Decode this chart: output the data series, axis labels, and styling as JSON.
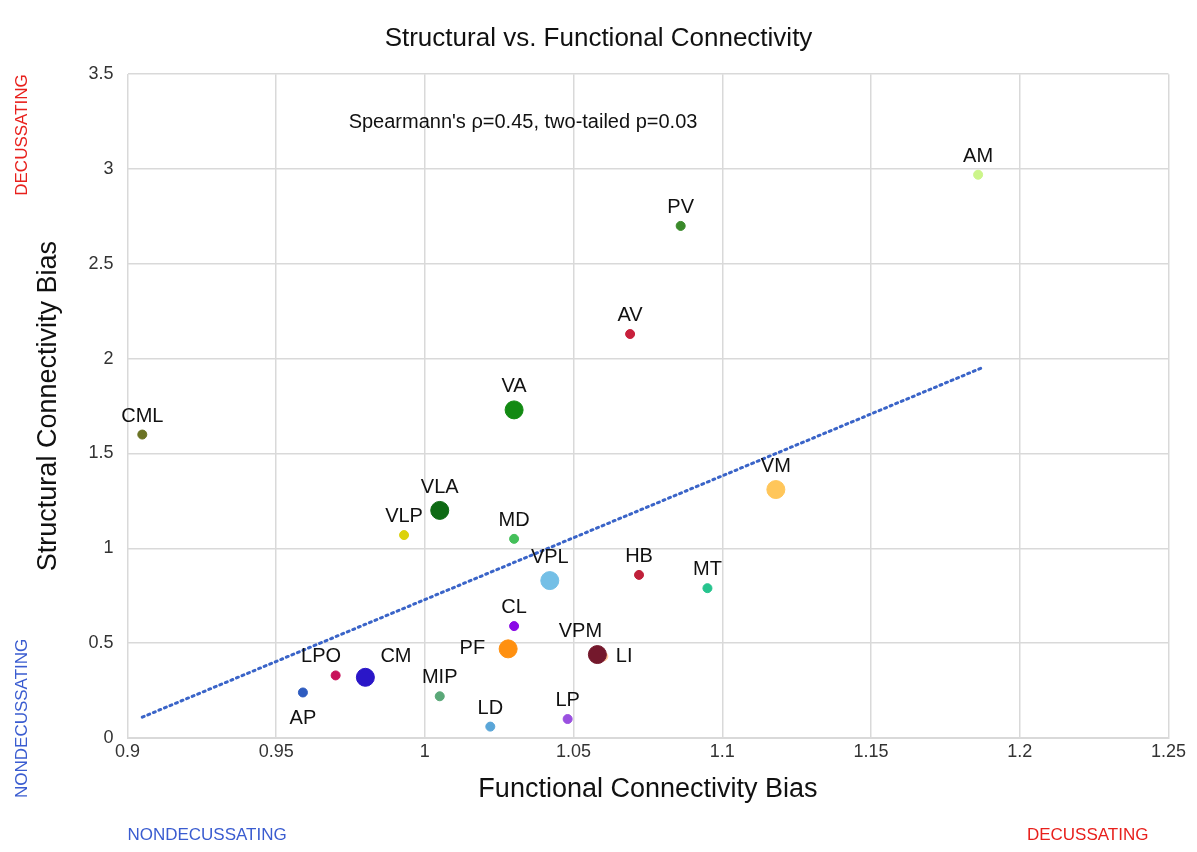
{
  "chart_data": {
    "type": "bubble",
    "title": "Structural vs. Functional Connectivity",
    "xlabel": "Functional Connectivity Bias",
    "ylabel": "Structural Connectivity Bias",
    "annotations": [
      "Spearmann's ρ=0.45, two-tailed p=0.03",
      "DECUSSATING",
      "NONDECUSSATING",
      "NONDECUSSATING",
      "DECUSSATING"
    ],
    "xlim": [
      0.9,
      1.25
    ],
    "xticks": [
      0.9,
      0.95,
      1,
      1.05,
      1.1,
      1.15,
      1.2,
      1.25
    ],
    "ylim": [
      0,
      3.5
    ],
    "yticks": [
      0,
      0.5,
      1,
      1.5,
      2,
      2.5,
      3,
      3.5
    ],
    "grid": true,
    "marker": "circle",
    "series": [
      {
        "name": "AM",
        "color": "#ccf58a",
        "x": [
          1.186
        ],
        "values": [
          2.97
        ],
        "sizes": [
          0.25
        ]
      },
      {
        "name": "PV",
        "color": "#3a8a2a",
        "x": [
          1.086
        ],
        "values": [
          2.7
        ],
        "sizes": [
          0.25
        ]
      },
      {
        "name": "AV",
        "color": "#c8203c",
        "x": [
          1.069
        ],
        "values": [
          2.13
        ],
        "sizes": [
          0.25
        ]
      },
      {
        "name": "VA",
        "color": "#128a12",
        "x": [
          1.03
        ],
        "values": [
          1.73
        ],
        "sizes": [
          1
        ]
      },
      {
        "name": "CML",
        "color": "#6b7324",
        "x": [
          0.905
        ],
        "values": [
          1.6
        ],
        "sizes": [
          0.25
        ]
      },
      {
        "name": "VM",
        "color": "#ffc65a",
        "x": [
          1.118
        ],
        "values": [
          1.31
        ],
        "sizes": [
          1
        ]
      },
      {
        "name": "VLA",
        "color": "#0e6a14",
        "x": [
          1.005
        ],
        "values": [
          1.2
        ],
        "sizes": [
          1
        ]
      },
      {
        "name": "VLP",
        "color": "#dcd20c",
        "x": [
          0.993
        ],
        "values": [
          1.07
        ],
        "sizes": [
          0.25
        ]
      },
      {
        "name": "MD",
        "color": "#44c05a",
        "x": [
          1.03
        ],
        "values": [
          1.05
        ],
        "sizes": [
          0.25
        ]
      },
      {
        "name": "VPL",
        "color": "#74bfe6",
        "x": [
          1.042
        ],
        "values": [
          0.83
        ],
        "sizes": [
          1
        ]
      },
      {
        "name": "HB",
        "color": "#c0203a",
        "x": [
          1.072
        ],
        "values": [
          0.86
        ],
        "sizes": [
          0.25
        ]
      },
      {
        "name": "MT",
        "color": "#26c48e",
        "x": [
          1.095
        ],
        "values": [
          0.79
        ],
        "sizes": [
          0.25
        ]
      },
      {
        "name": "CL",
        "color": "#8a0ae6",
        "x": [
          1.03
        ],
        "values": [
          0.59
        ],
        "sizes": [
          0.25
        ]
      },
      {
        "name": "PF",
        "color": "#ff9010",
        "x": [
          1.028
        ],
        "values": [
          0.47
        ],
        "sizes": [
          1
        ]
      },
      {
        "name": "VPM",
        "color": "#74182c",
        "x": [
          1.058
        ],
        "values": [
          0.44
        ],
        "sizes": [
          1
        ]
      },
      {
        "name": "LI",
        "color": "#ffc89a",
        "x": [
          1.06
        ],
        "values": [
          0.43
        ],
        "sizes": [
          0.25
        ]
      },
      {
        "name": "LPO",
        "color": "#c8105a",
        "x": [
          0.97
        ],
        "values": [
          0.33
        ],
        "sizes": [
          0.25
        ]
      },
      {
        "name": "CM",
        "color": "#2a16c8",
        "x": [
          0.98
        ],
        "values": [
          0.32
        ],
        "sizes": [
          1
        ]
      },
      {
        "name": "AP",
        "color": "#2e5cc0",
        "x": [
          0.959
        ],
        "values": [
          0.24
        ],
        "sizes": [
          0.25
        ]
      },
      {
        "name": "MIP",
        "color": "#5aa878",
        "x": [
          1.005
        ],
        "values": [
          0.22
        ],
        "sizes": [
          0.25
        ]
      },
      {
        "name": "LD",
        "color": "#5aa6d8",
        "x": [
          1.022
        ],
        "values": [
          0.06
        ],
        "sizes": [
          0.25
        ]
      },
      {
        "name": "LP",
        "color": "#9a50e0",
        "x": [
          1.048
        ],
        "values": [
          0.1
        ],
        "sizes": [
          0.25
        ]
      },
      {
        "type": "line",
        "color": "#3a64c8",
        "line_style": "dotted",
        "marker": "none",
        "x": [
          0.905,
          1.187
        ],
        "values": [
          0.11,
          1.95
        ]
      }
    ]
  }
}
